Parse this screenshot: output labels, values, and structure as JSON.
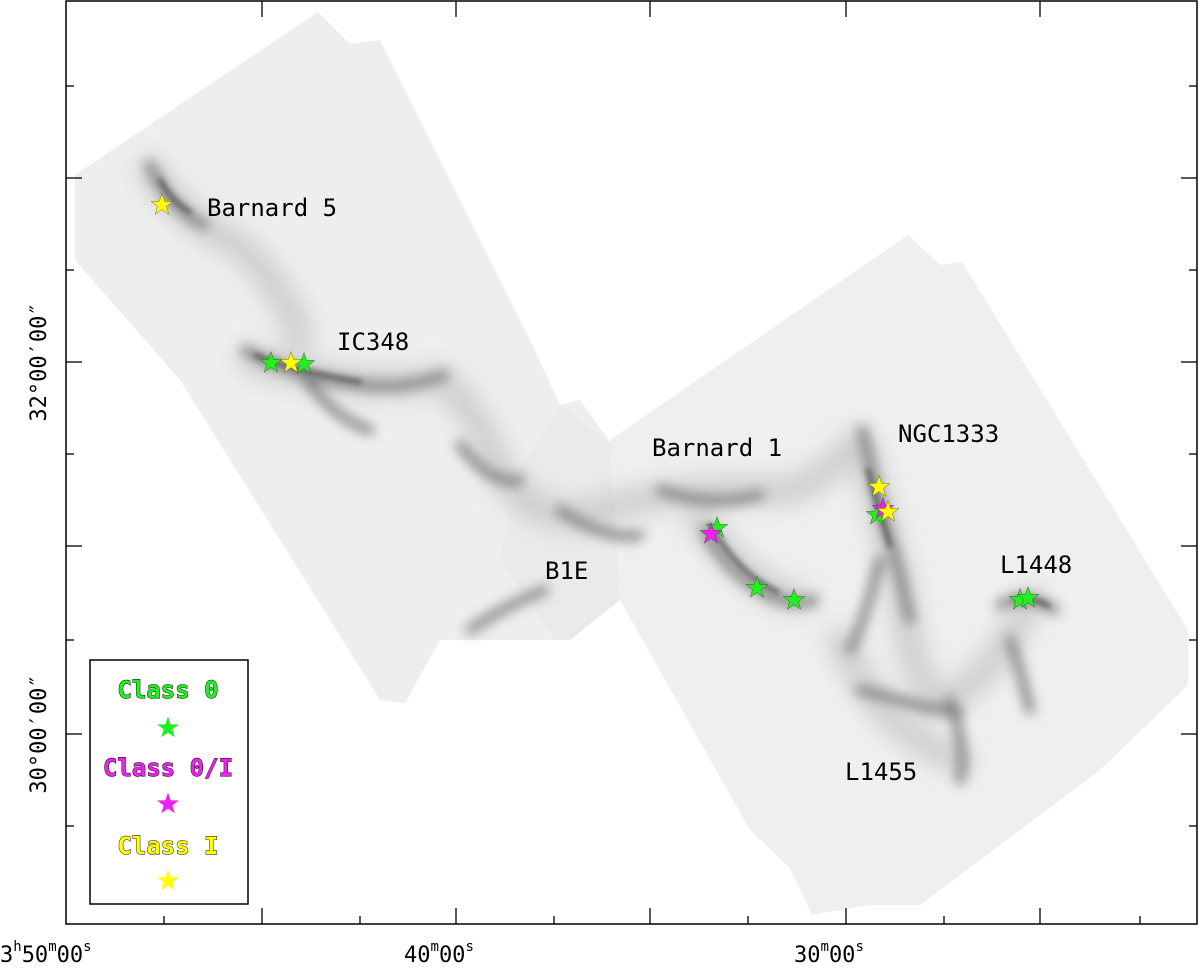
{
  "map": {
    "x_ticks": [
      {
        "hours": "3",
        "minutes": "50",
        "seconds": "00"
      },
      {
        "hours": "",
        "minutes": "40",
        "seconds": "00"
      },
      {
        "hours": "",
        "minutes": "30",
        "seconds": "00"
      }
    ],
    "y_ticks": [
      "32°00′00″",
      "30°00′00″"
    ],
    "regions": [
      "Barnard 5",
      "IC348",
      "Barnard 1",
      "NGC1333",
      "B1E",
      "L1448",
      "L1455"
    ],
    "legend": [
      {
        "label": "Class 0",
        "color": "#22ee22"
      },
      {
        "label": "Class 0/I",
        "color": "#ee22ee"
      },
      {
        "label": "Class I",
        "color": "#ffff00"
      }
    ],
    "colors": {
      "class0": "#22ee22",
      "class0i": "#ee22ee",
      "classI": "#ffff00",
      "map_background": "#eeeeee",
      "dust_dark": "#5a5a5a"
    }
  }
}
